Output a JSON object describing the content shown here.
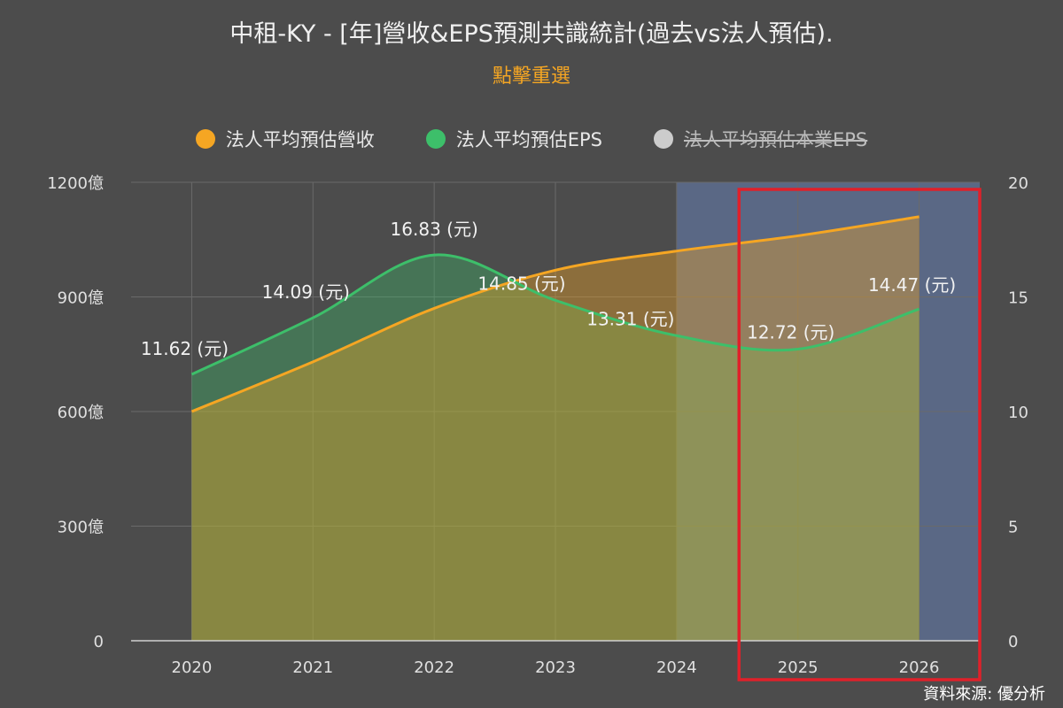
{
  "header": {
    "title": "中租-KY - [年]營收&EPS預測共識統計(過去vs法人預估).",
    "reselect_label": "點擊重選"
  },
  "legend": [
    {
      "label": "法人平均預估營收",
      "color": "#f5a623",
      "hidden": false
    },
    {
      "label": "法人平均預估EPS",
      "color": "#3dbf6a",
      "hidden": false
    },
    {
      "label": "法人平均預估本業EPS",
      "color": "#cccccc",
      "hidden": true
    }
  ],
  "source_label": "資料來源: 優分析",
  "chart_data": {
    "type": "area",
    "categories": [
      "2020",
      "2021",
      "2022",
      "2023",
      "2024",
      "2025",
      "2026"
    ],
    "y_left": {
      "ticks": [
        "0",
        "300億",
        "600億",
        "900億",
        "1200億"
      ],
      "range": [
        0,
        1200
      ],
      "unit": "億"
    },
    "y_right": {
      "ticks": [
        "0",
        "5",
        "10",
        "15",
        "20"
      ],
      "range": [
        0,
        20
      ]
    },
    "series": [
      {
        "name": "法人平均預估營收",
        "axis": "left",
        "color": "#f5a623",
        "values": [
          600,
          730,
          870,
          970,
          1020,
          1060,
          1110
        ]
      },
      {
        "name": "法人平均預估EPS",
        "axis": "right",
        "color": "#3dbf6a",
        "values": [
          11.62,
          14.09,
          16.83,
          14.85,
          13.31,
          12.72,
          14.47
        ],
        "labels": [
          "11.62 (元)",
          "14.09 (元)",
          "16.83 (元)",
          "14.85 (元)",
          "13.31 (元)",
          "12.72 (元)",
          "14.47 (元)"
        ]
      }
    ],
    "forecast_band": {
      "from": "2024",
      "to": "2026",
      "color": "#5d6d8f"
    },
    "highlight": {
      "from": "2025",
      "to": "2026",
      "color": "#e0202a"
    },
    "grid": true
  }
}
